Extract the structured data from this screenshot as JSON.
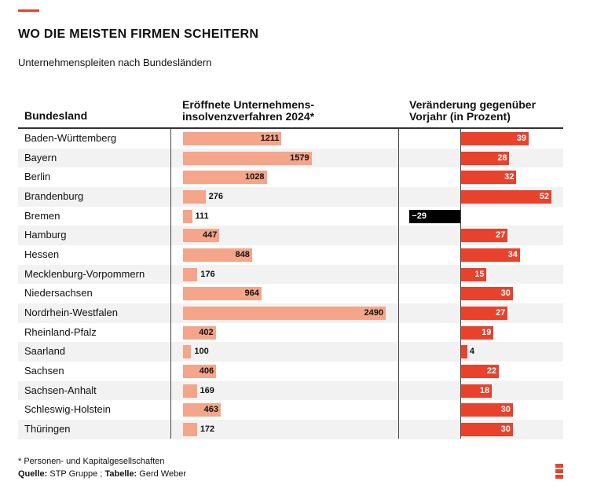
{
  "header": {
    "title": "WO DIE MEISTEN FIRMEN SCHEITERN",
    "subtitle": "Unternehmenspleiten nach Bundesländern"
  },
  "columns": {
    "state": "Bundesland",
    "count_line1": "Eröffnete Unternehmens-",
    "count_line2": "insolvenzverfahren 2024*",
    "change_line1": "Veränderung gegenüber",
    "change_line2": "Vorjahr (in Prozent)"
  },
  "footer": {
    "footnote": "* Personen- und Kapitalgesellschaften",
    "source_label": "Quelle:",
    "source_value": " STP Gruppe ; ",
    "table_label": "Tabelle:",
    "table_value": " Gerd Weber"
  },
  "colors": {
    "accent": "#e8412c",
    "count_bar": "#f4a58a",
    "negative_bar": "#000000"
  },
  "chart_data": {
    "type": "bar",
    "categories": [
      "Baden-Württemberg",
      "Bayern",
      "Berlin",
      "Brandenburg",
      "Bremen",
      "Hamburg",
      "Hessen",
      "Mecklenburg-Vorpommern",
      "Niedersachsen",
      "Nordrhein-Westfalen",
      "Rheinland-Pfalz",
      "Saarland",
      "Sachsen",
      "Sachsen-Anhalt",
      "Schleswig-Holstein",
      "Thüringen"
    ],
    "series": [
      {
        "name": "Eröffnete Unternehmensinsolvenzverfahren 2024*",
        "values": [
          1211,
          1579,
          1028,
          276,
          111,
          447,
          848,
          176,
          964,
          2490,
          402,
          100,
          406,
          169,
          463,
          172
        ]
      },
      {
        "name": "Veränderung gegenüber Vorjahr (in Prozent)",
        "values": [
          39,
          28,
          32,
          52,
          -29,
          27,
          34,
          15,
          30,
          27,
          19,
          4,
          22,
          18,
          30,
          30
        ]
      }
    ],
    "title": "WO DIE MEISTEN FIRMEN SCHEITERN",
    "subtitle": "Unternehmenspleiten nach Bundesländern",
    "grid": false,
    "legend": "none"
  }
}
